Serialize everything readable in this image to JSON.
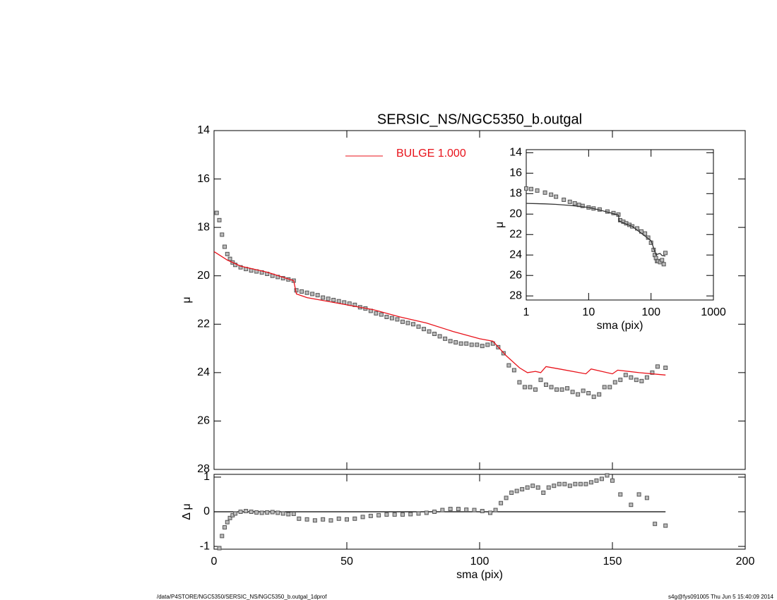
{
  "chart_data": [
    {
      "type": "scatter",
      "title": "SERSIC_NS/NGC5350_b.outgal",
      "ylabel": "μ",
      "xlim": [
        0,
        200
      ],
      "xticks": [
        0,
        50,
        100,
        150,
        200
      ],
      "show_xtick_labels": false,
      "ylim": [
        28,
        14
      ],
      "yticks": [
        14,
        16,
        18,
        20,
        22,
        24,
        26,
        28
      ],
      "legend": "upper center",
      "series": [
        {
          "style": "points",
          "color": "#555555",
          "x": [
            1,
            2,
            3,
            4,
            5,
            6,
            7,
            8,
            10,
            12,
            14,
            16,
            18,
            20,
            22,
            24,
            26,
            28,
            30,
            31,
            33,
            35,
            37,
            39,
            41,
            43,
            45,
            47,
            49,
            51,
            53,
            55,
            57,
            59,
            61,
            63,
            65,
            67,
            69,
            71,
            73,
            75,
            77,
            79,
            81,
            83,
            85,
            87,
            89,
            91,
            93,
            95,
            97,
            99,
            101,
            103,
            105,
            107,
            109,
            111,
            113,
            115,
            117,
            119,
            121,
            123,
            125,
            127,
            129,
            131,
            133,
            135,
            137,
            139,
            141,
            143,
            145,
            147,
            149,
            151,
            153,
            155,
            157,
            159,
            161,
            163,
            165,
            167,
            170
          ],
          "values": [
            17.4,
            17.7,
            18.3,
            18.8,
            19.1,
            19.3,
            19.45,
            19.55,
            19.65,
            19.72,
            19.78,
            19.82,
            19.86,
            19.92,
            20.0,
            20.05,
            20.1,
            20.15,
            20.2,
            20.6,
            20.65,
            20.7,
            20.75,
            20.8,
            20.9,
            20.95,
            21.0,
            21.05,
            21.1,
            21.15,
            21.2,
            21.3,
            21.35,
            21.45,
            21.55,
            21.6,
            21.7,
            21.75,
            21.8,
            21.9,
            21.95,
            22.0,
            22.1,
            22.2,
            22.3,
            22.4,
            22.5,
            22.6,
            22.7,
            22.75,
            22.8,
            22.8,
            22.85,
            22.85,
            22.9,
            22.85,
            22.8,
            22.95,
            23.2,
            23.7,
            23.9,
            24.4,
            24.6,
            24.6,
            24.7,
            24.3,
            24.5,
            24.6,
            24.7,
            24.7,
            24.65,
            24.8,
            24.9,
            24.75,
            24.85,
            25.0,
            24.9,
            24.6,
            24.6,
            24.4,
            24.3,
            24.1,
            24.2,
            24.3,
            24.35,
            24.2,
            24.0,
            23.75,
            23.8
          ]
        },
        {
          "style": "line",
          "name": "BULGE  1.000",
          "color": "#e8121a",
          "x": [
            0,
            5,
            10,
            20,
            30,
            31,
            35,
            40,
            50,
            60,
            70,
            80,
            90,
            100,
            105,
            110,
            115,
            118,
            121,
            123,
            125,
            130,
            140,
            142,
            150,
            152,
            160,
            170
          ],
          "values": [
            19.0,
            19.35,
            19.6,
            19.85,
            20.2,
            20.75,
            20.9,
            21.0,
            21.2,
            21.4,
            21.7,
            21.95,
            22.3,
            22.6,
            22.7,
            23.3,
            23.8,
            24.0,
            23.95,
            24.0,
            23.75,
            23.85,
            24.05,
            23.85,
            24.05,
            23.9,
            24.0,
            24.1
          ]
        }
      ]
    },
    {
      "type": "scatter",
      "xlabel": "sma (pix)",
      "ylabel": "Δ μ",
      "xlim": [
        0,
        200
      ],
      "xticks": [
        0,
        50,
        100,
        150,
        200
      ],
      "show_xtick_labels": true,
      "ylim": [
        -1.08,
        1.08
      ],
      "yticks": [
        -1,
        0,
        1
      ],
      "series": [
        {
          "style": "line",
          "color": "#000000",
          "x": [
            0,
            170
          ],
          "values": [
            0,
            0
          ]
        },
        {
          "style": "points",
          "color": "#555555",
          "x": [
            2,
            3,
            4,
            5,
            6,
            7,
            8,
            10,
            12,
            14,
            16,
            18,
            20,
            22,
            24,
            26,
            28,
            30,
            32,
            35,
            38,
            41,
            44,
            47,
            50,
            53,
            56,
            59,
            62,
            65,
            68,
            71,
            74,
            77,
            80,
            83,
            86,
            89,
            92,
            95,
            98,
            101,
            104,
            106,
            108,
            110,
            112,
            114,
            116,
            118,
            120,
            122,
            124,
            126,
            128,
            130,
            132,
            134,
            136,
            138,
            140,
            142,
            144,
            146,
            148,
            150,
            153,
            157,
            160,
            163,
            166,
            170
          ],
          "values": [
            -1.05,
            -0.7,
            -0.45,
            -0.3,
            -0.18,
            -0.1,
            -0.05,
            0.0,
            0.02,
            0.0,
            -0.02,
            -0.03,
            -0.02,
            -0.01,
            -0.03,
            -0.05,
            -0.07,
            -0.06,
            -0.2,
            -0.22,
            -0.25,
            -0.22,
            -0.25,
            -0.2,
            -0.22,
            -0.2,
            -0.15,
            -0.12,
            -0.1,
            -0.08,
            -0.08,
            -0.08,
            -0.07,
            -0.05,
            -0.03,
            0.0,
            0.05,
            0.08,
            0.08,
            0.06,
            0.05,
            0.02,
            -0.03,
            0.05,
            0.25,
            0.4,
            0.55,
            0.6,
            0.65,
            0.7,
            0.75,
            0.7,
            0.55,
            0.7,
            0.75,
            0.8,
            0.8,
            0.75,
            0.8,
            0.8,
            0.8,
            0.85,
            0.9,
            0.95,
            1.05,
            0.9,
            0.5,
            0.2,
            0.5,
            0.4,
            -0.35,
            -0.4
          ]
        }
      ]
    },
    {
      "type": "scatter",
      "xlabel": "sma (pix)",
      "ylabel": "μ",
      "xlog": true,
      "xlim": [
        1,
        1000
      ],
      "xticks": [
        1,
        10,
        100,
        1000
      ],
      "show_xtick_labels": true,
      "ylim": [
        28.4,
        13.7
      ],
      "yticks": [
        14,
        16,
        18,
        20,
        22,
        24,
        26,
        28
      ],
      "series": [
        {
          "style": "points",
          "color": "#555555",
          "x": [
            1,
            1.2,
            1.5,
            2,
            2.5,
            3,
            4,
            5,
            6,
            7,
            8,
            10,
            12,
            15,
            20,
            25,
            30,
            32,
            36,
            40,
            45,
            50,
            60,
            70,
            80,
            90,
            100,
            110,
            115,
            120,
            125,
            130,
            140,
            150,
            160,
            170
          ],
          "values": [
            17.5,
            17.55,
            17.7,
            17.9,
            18.1,
            18.3,
            18.6,
            18.8,
            18.95,
            19.1,
            19.2,
            19.35,
            19.45,
            19.55,
            19.75,
            19.9,
            20.05,
            20.6,
            20.75,
            20.9,
            21.05,
            21.2,
            21.4,
            21.7,
            21.9,
            22.3,
            22.8,
            23.5,
            24.0,
            24.3,
            24.6,
            24.6,
            24.7,
            24.5,
            24.9,
            23.8
          ]
        },
        {
          "style": "line",
          "color": "#333333",
          "x": [
            1,
            2,
            3,
            5,
            7,
            10,
            15,
            20,
            30,
            31,
            50,
            100,
            110,
            120,
            130,
            140,
            150,
            170
          ],
          "values": [
            18.95,
            19.0,
            19.05,
            19.15,
            19.25,
            19.35,
            19.6,
            19.8,
            20.1,
            20.7,
            21.2,
            22.6,
            23.3,
            24.0,
            23.9,
            23.85,
            24.05,
            24.1
          ]
        }
      ]
    }
  ],
  "footer": {
    "left": "/data/P4STORE/NGC5350/SERSIC_NS/NGC5350_b.outgal_1dprof",
    "right": "s4g@fys091005  Thu Jun  5 15:40:09 2014"
  }
}
